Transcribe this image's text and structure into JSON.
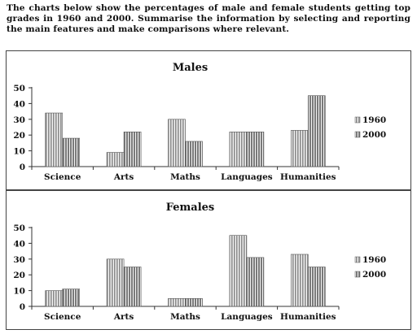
{
  "prompt": "The charts below show the percentages of male and female students getting top grades in 1960 and 2000. Summarise the information by selecting and reporting the main features and make comparisons where relevant.",
  "colors": {
    "bar1960": "#8a8a8a",
    "bar2000": "#7a7a7a",
    "axis": "#333333",
    "text": "#111111"
  },
  "chart_data": [
    {
      "type": "bar",
      "title": "Males",
      "categories": [
        "Science",
        "Arts",
        "Maths",
        "Languages",
        "Humanities"
      ],
      "series": [
        {
          "name": "1960",
          "values": [
            34,
            9,
            30,
            22,
            23
          ]
        },
        {
          "name": "2000",
          "values": [
            18,
            22,
            16,
            22,
            45
          ]
        }
      ],
      "ylim": [
        0,
        50
      ],
      "yticks": [
        0,
        10,
        20,
        30,
        40,
        50
      ],
      "legend": "right",
      "grid": false
    },
    {
      "type": "bar",
      "title": "Females",
      "categories": [
        "Science",
        "Arts",
        "Maths",
        "Languages",
        "Humanities"
      ],
      "series": [
        {
          "name": "1960",
          "values": [
            10,
            30,
            5,
            45,
            33
          ]
        },
        {
          "name": "2000",
          "values": [
            11,
            25,
            5,
            31,
            25
          ]
        }
      ],
      "ylim": [
        0,
        50
      ],
      "yticks": [
        0,
        10,
        20,
        30,
        40,
        50
      ],
      "legend": "right",
      "grid": false
    }
  ]
}
